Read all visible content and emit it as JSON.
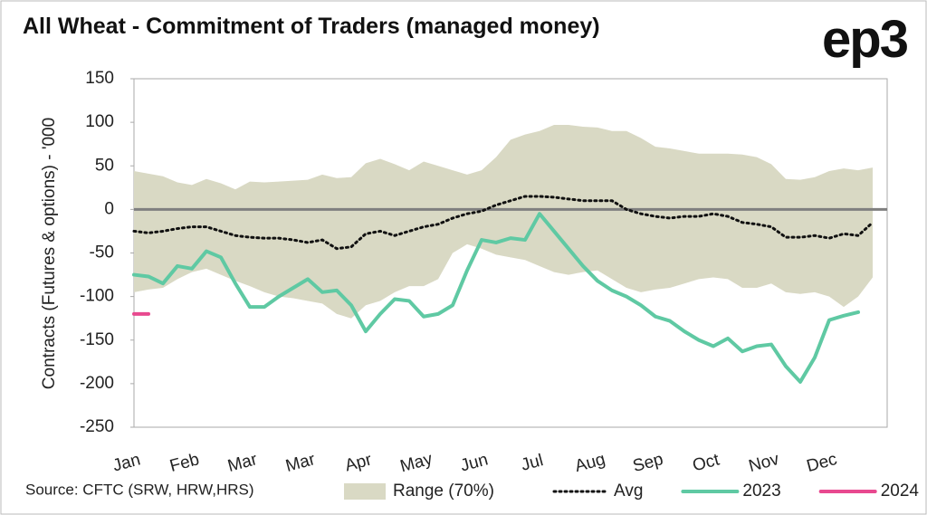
{
  "logo": "ep3",
  "chart_data": {
    "type": "line",
    "title": "All Wheat - Commitment of Traders (managed money)",
    "y_label": "Contracts (Futures & options) - '000",
    "source": "Source: CFTC (SRW, HRW,HRS)",
    "categories": [
      "Jan",
      null,
      null,
      null,
      "Feb",
      null,
      null,
      null,
      "Mar",
      null,
      null,
      null,
      "Mar",
      null,
      null,
      null,
      "Apr",
      null,
      null,
      null,
      "May",
      null,
      null,
      null,
      "Jun",
      null,
      null,
      null,
      "Jul",
      null,
      null,
      null,
      "Aug",
      null,
      null,
      null,
      "Sep",
      null,
      null,
      null,
      "Oct",
      null,
      null,
      null,
      "Nov",
      null,
      null,
      null,
      "Dec",
      null,
      null,
      null
    ],
    "ylim": [
      -250,
      150
    ],
    "yticks": [
      -250,
      -200,
      -150,
      -100,
      -50,
      0,
      50,
      100,
      150
    ],
    "band": {
      "name": "Range (70%)",
      "color": "#d9d9c4",
      "high": [
        44,
        41,
        38,
        31,
        28,
        35,
        30,
        23,
        32,
        31,
        32,
        33,
        34,
        40,
        36,
        37,
        53,
        58,
        52,
        45,
        55,
        50,
        45,
        40,
        45,
        60,
        80,
        86,
        90,
        97,
        97,
        95,
        94,
        90,
        90,
        82,
        72,
        70,
        67,
        64,
        64,
        64,
        63,
        60,
        52,
        35,
        34,
        37,
        44,
        47,
        45,
        48
      ],
      "low": [
        -95,
        -92,
        -90,
        -80,
        -72,
        -68,
        -75,
        -82,
        -88,
        -95,
        -100,
        -102,
        -105,
        -108,
        -120,
        -125,
        -110,
        -105,
        -95,
        -88,
        -88,
        -80,
        -50,
        -40,
        -45,
        -52,
        -55,
        -58,
        -65,
        -72,
        -75,
        -72,
        -70,
        -80,
        -90,
        -95,
        -92,
        -90,
        -85,
        -80,
        -78,
        -80,
        -90,
        -90,
        -85,
        -95,
        -97,
        -95,
        -100,
        -112,
        -100,
        -78
      ]
    },
    "series": [
      {
        "name": "Avg",
        "color": "#111111",
        "style": "dotted",
        "values": [
          -25,
          -27,
          -25,
          -22,
          -20,
          -20,
          -25,
          -30,
          -32,
          -33,
          -33,
          -35,
          -38,
          -35,
          -45,
          -43,
          -28,
          -25,
          -30,
          -25,
          -20,
          -17,
          -10,
          -5,
          -2,
          5,
          10,
          15,
          15,
          14,
          12,
          10,
          10,
          10,
          0,
          -5,
          -8,
          -10,
          -8,
          -8,
          -5,
          -8,
          -15,
          -17,
          -20,
          -32,
          -32,
          -30,
          -33,
          -28,
          -30,
          -15
        ]
      },
      {
        "name": "2023",
        "color": "#5fc9a3",
        "style": "solid",
        "values": [
          -75,
          -77,
          -85,
          -65,
          -68,
          -48,
          -55,
          -85,
          -112,
          -112,
          -100,
          -90,
          -80,
          -95,
          -93,
          -110,
          -140,
          -120,
          -103,
          -105,
          -123,
          -120,
          -110,
          -70,
          -35,
          -38,
          -33,
          -35,
          -5,
          -25,
          -45,
          -65,
          -82,
          -93,
          -100,
          -110,
          -123,
          -128,
          -140,
          -150,
          -157,
          -148,
          -163,
          -157,
          -155,
          -180,
          -198,
          -170,
          -127,
          -122,
          -118,
          null
        ]
      },
      {
        "name": "2024",
        "color": "#e8498f",
        "style": "solid",
        "values": [
          -120,
          -120,
          null,
          null,
          null,
          null,
          null,
          null,
          null,
          null,
          null,
          null,
          null,
          null,
          null,
          null,
          null,
          null,
          null,
          null,
          null,
          null,
          null,
          null,
          null,
          null,
          null,
          null,
          null,
          null,
          null,
          null,
          null,
          null,
          null,
          null,
          null,
          null,
          null,
          null,
          null,
          null,
          null,
          null,
          null,
          null,
          null,
          null,
          null,
          null,
          null,
          null
        ]
      }
    ]
  }
}
